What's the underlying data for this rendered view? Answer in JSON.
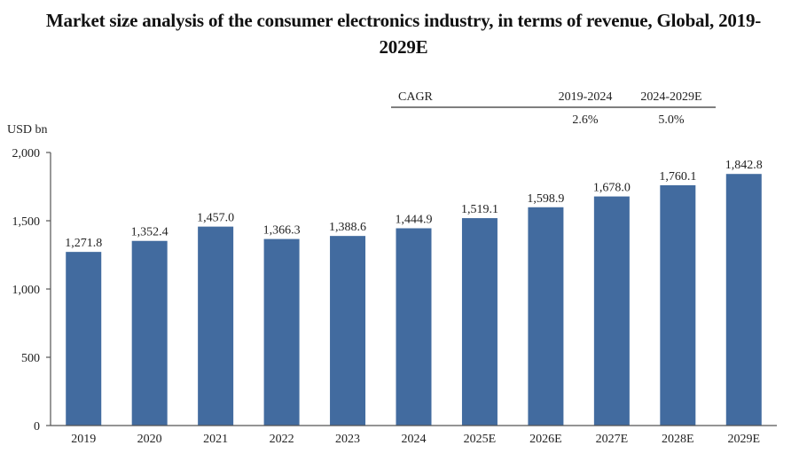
{
  "chart_data": {
    "type": "bar",
    "title": "Market size analysis of the consumer electronics industry, in terms of revenue, Global, 2019-2029E",
    "title_lines": [
      "Market size analysis of the consumer electronics industry, in terms of revenue, Global, 2019-",
      "2029E"
    ],
    "xlabel": "",
    "ylabel": "USD bn",
    "ylim": [
      0,
      2000
    ],
    "yticks": [
      0,
      500,
      1000,
      1500,
      2000
    ],
    "ytick_labels": [
      "0",
      "500",
      "1,000",
      "1,500",
      "2,000"
    ],
    "grid": false,
    "categories": [
      "2019",
      "2020",
      "2021",
      "2022",
      "2023",
      "2024",
      "2025E",
      "2026E",
      "2027E",
      "2028E",
      "2029E"
    ],
    "values": [
      1271.8,
      1352.4,
      1457.0,
      1366.3,
      1388.6,
      1444.9,
      1519.1,
      1598.9,
      1678.0,
      1760.1,
      1842.8
    ],
    "data_labels": [
      "1,271.8",
      "1,352.4",
      "1,457.0",
      "1,366.3",
      "1,388.6",
      "1,444.9",
      "1,519.1",
      "1,598.9",
      "1,678.0",
      "1,760.1",
      "1,842.8"
    ],
    "bar_color": "#426b9f",
    "annotations": {
      "cagr_table": {
        "header": "CAGR",
        "columns": [
          "2019-2024",
          "2024-2029E"
        ],
        "values": [
          "2.6%",
          "5.0%"
        ]
      }
    }
  }
}
